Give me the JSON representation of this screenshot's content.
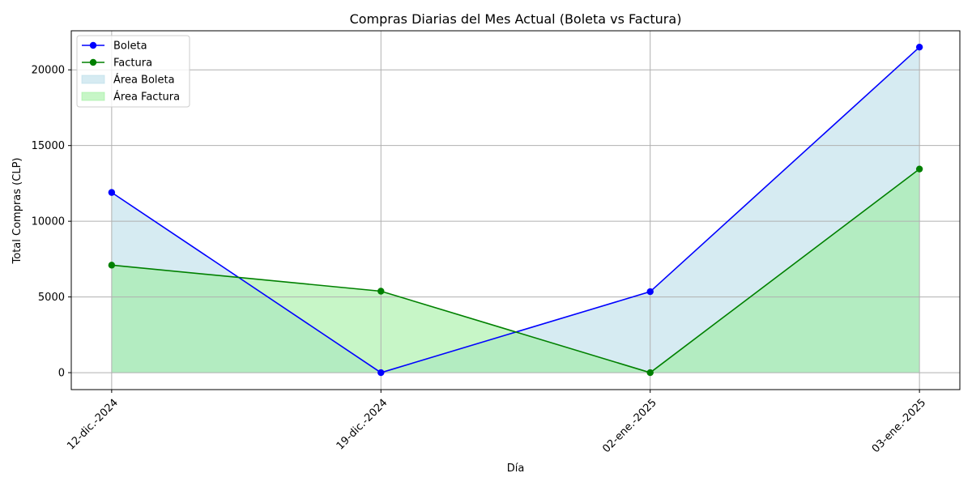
{
  "chart_data": {
    "type": "line",
    "title": "Compras Diarias del Mes Actual (Boleta vs Factura)",
    "xlabel": "Día",
    "ylabel": "Total Compras (CLP)",
    "categories": [
      "12-dic.-2024",
      "19-dic.-2024",
      "02-ene.-2025",
      "03-ene.-2025"
    ],
    "series": [
      {
        "name": "Boleta",
        "values": [
          11900,
          0,
          5350,
          21500
        ],
        "color": "#0000ff"
      },
      {
        "name": "Factura",
        "values": [
          7100,
          5380,
          0,
          13450
        ],
        "color": "#008000"
      }
    ],
    "areas": [
      {
        "name": "Área Boleta",
        "series": "Boleta",
        "color": "#add8e6"
      },
      {
        "name": "Área Factura",
        "series": "Factura",
        "color": "#90ee90"
      }
    ],
    "ylim": [
      -1120,
      22580
    ],
    "yticks": [
      0,
      5000,
      10000,
      15000,
      20000
    ],
    "grid": true,
    "legend_position": "top-left"
  }
}
